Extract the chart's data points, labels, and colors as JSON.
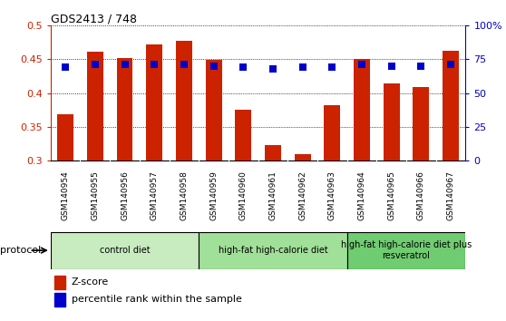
{
  "title": "GDS2413 / 748",
  "samples": [
    "GSM140954",
    "GSM140955",
    "GSM140956",
    "GSM140957",
    "GSM140958",
    "GSM140959",
    "GSM140960",
    "GSM140961",
    "GSM140962",
    "GSM140963",
    "GSM140964",
    "GSM140965",
    "GSM140966",
    "GSM140967"
  ],
  "zscore": [
    0.368,
    0.462,
    0.452,
    0.472,
    0.477,
    0.449,
    0.376,
    0.323,
    0.309,
    0.382,
    0.45,
    0.414,
    0.409,
    0.463
  ],
  "percentile": [
    69,
    71,
    71,
    71,
    71,
    70,
    69,
    68,
    69,
    69,
    71,
    70,
    70,
    71
  ],
  "bar_color": "#cc2200",
  "dot_color": "#0000cc",
  "groups": [
    {
      "label": "control diet",
      "start": 0,
      "end": 5,
      "color": "#c8ecc0"
    },
    {
      "label": "high-fat high-calorie diet",
      "start": 5,
      "end": 10,
      "color": "#a0e098"
    },
    {
      "label": "high-fat high-calorie diet plus\nresveratrol",
      "start": 10,
      "end": 14,
      "color": "#70cc70"
    }
  ],
  "ylim_left": [
    0.3,
    0.5
  ],
  "ylim_right": [
    0,
    100
  ],
  "yticks_left": [
    0.3,
    0.35,
    0.4,
    0.45,
    0.5
  ],
  "yticks_right": [
    0,
    25,
    50,
    75,
    100
  ],
  "ytick_labels_right": [
    "0",
    "25",
    "50",
    "75",
    "100%"
  ],
  "protocol_label": "protocol",
  "legend_zscore": "Z-score",
  "legend_percentile": "percentile rank within the sample",
  "dot_size": 30,
  "bar_width": 0.55,
  "chart_bg": "#ffffff",
  "xtick_bg": "#d8d8d8",
  "left_axis_color": "#cc2200",
  "right_axis_color": "#0000cc"
}
